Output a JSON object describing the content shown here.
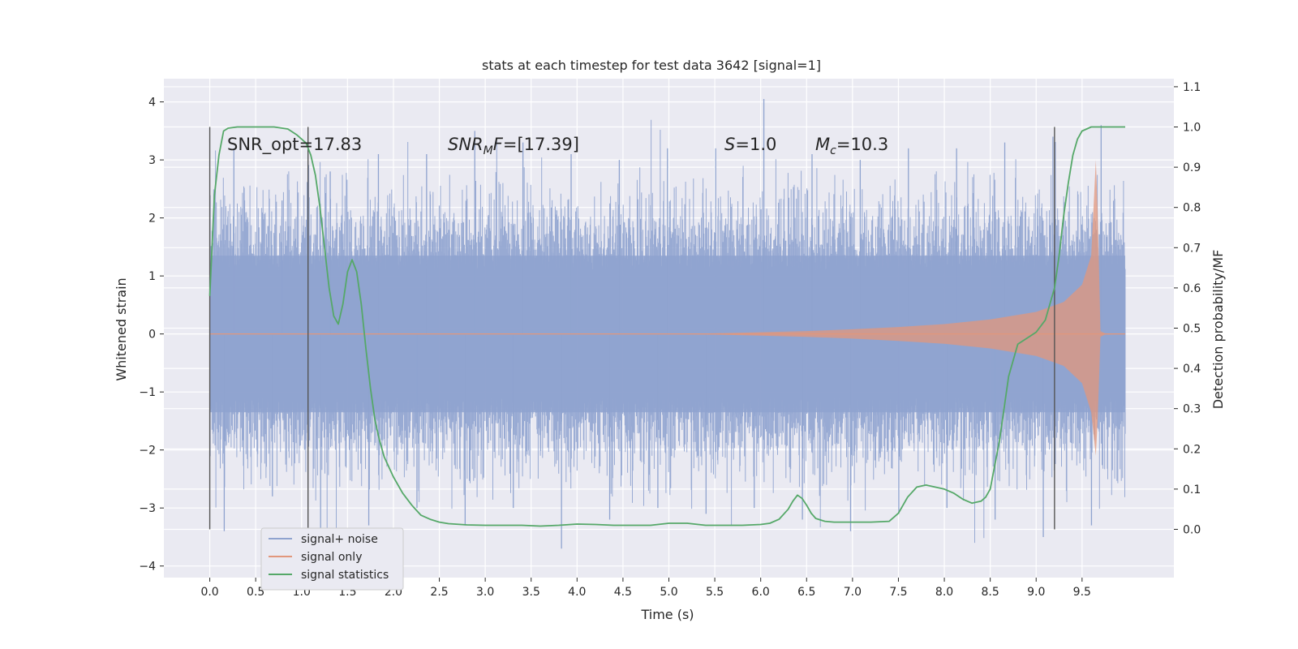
{
  "chart_data": {
    "type": "line",
    "title": "stats at each timestep for test data 3642 [signal=1]",
    "xlabel": "Time (s)",
    "ylabel": "Whitened strain",
    "ylabel_right": "Detection probability/MF",
    "xlim": [
      -0.5,
      10.5
    ],
    "ylim": [
      -4.2,
      4.4
    ],
    "ylim_right": [
      -0.12,
      1.12
    ],
    "x_ticks": [
      "0.0",
      "0.5",
      "1.0",
      "1.5",
      "2.0",
      "2.5",
      "3.0",
      "3.5",
      "4.0",
      "4.5",
      "5.0",
      "5.5",
      "6.0",
      "6.5",
      "7.0",
      "7.5",
      "8.0",
      "8.5",
      "9.0",
      "9.5"
    ],
    "y_ticks": [
      "4",
      "3",
      "2",
      "1",
      "0",
      "−1",
      "−2",
      "−3",
      "−4"
    ],
    "y_ticks_right": [
      "1.1",
      "1.0",
      "0.9",
      "0.8",
      "0.7",
      "0.6",
      "0.5",
      "0.4",
      "0.3",
      "0.2",
      "0.1",
      "0.0"
    ],
    "grid": true,
    "legend_position": "bottom-left",
    "annotations": {
      "snr_opt": "SNR_opt=17.83",
      "snr_mf": "[17.39]",
      "s": "1.0",
      "mc": "10.3"
    },
    "vertical_lines_x": [
      0.0,
      1.07,
      9.2
    ],
    "series": [
      {
        "name": "signal+ noise",
        "color": "#8fa3cf",
        "x_range": [
          0.0,
          9.97
        ],
        "envelope_typical": 1.35,
        "peak_values": [
          3.2,
          2.3,
          2.8,
          3.1,
          3.1,
          3.5,
          3.3,
          3.1,
          3.0,
          3.2,
          3.2,
          4.05,
          3.1,
          3.0,
          3.2,
          3.2,
          3.3,
          3.4,
          3.6
        ],
        "trough_values": [
          -3.4,
          -2.8,
          -3.5,
          -3.3,
          -3.0,
          -3.3,
          -3.0,
          -3.7,
          -3.2,
          -3.0,
          -3.1,
          -3.0,
          -3.2,
          -3.4,
          -3.1,
          -3.0,
          -3.2,
          -3.5,
          -3.3
        ]
      },
      {
        "name": "signal only",
        "color": "#e1977c",
        "x": [
          0.0,
          5.0,
          5.5,
          6.0,
          6.5,
          7.0,
          7.5,
          8.0,
          8.5,
          9.0,
          9.3,
          9.5,
          9.6,
          9.65,
          9.67,
          9.7,
          9.75,
          9.97
        ],
        "amplitude": [
          0.0,
          0.0,
          0.01,
          0.03,
          0.05,
          0.08,
          0.12,
          0.17,
          0.25,
          0.38,
          0.55,
          0.85,
          1.35,
          3.0,
          2.1,
          0.05,
          0.01,
          0.0
        ]
      },
      {
        "name": "signal statistics",
        "color": "#55a868",
        "axis": "right",
        "x": [
          0.0,
          0.05,
          0.1,
          0.15,
          0.2,
          0.3,
          0.5,
          0.7,
          0.85,
          0.95,
          1.05,
          1.1,
          1.15,
          1.2,
          1.25,
          1.3,
          1.35,
          1.4,
          1.45,
          1.5,
          1.55,
          1.6,
          1.65,
          1.7,
          1.75,
          1.8,
          1.85,
          1.9,
          2.0,
          2.1,
          2.2,
          2.3,
          2.4,
          2.5,
          2.6,
          2.8,
          3.0,
          3.2,
          3.4,
          3.6,
          3.8,
          4.0,
          4.2,
          4.4,
          4.6,
          4.8,
          5.0,
          5.2,
          5.4,
          5.6,
          5.8,
          6.0,
          6.1,
          6.2,
          6.3,
          6.35,
          6.4,
          6.45,
          6.5,
          6.55,
          6.6,
          6.7,
          6.8,
          7.0,
          7.2,
          7.4,
          7.5,
          7.6,
          7.7,
          7.8,
          7.9,
          8.0,
          8.1,
          8.2,
          8.3,
          8.4,
          8.45,
          8.5,
          8.6,
          8.7,
          8.8,
          9.0,
          9.1,
          9.2,
          9.25,
          9.3,
          9.35,
          9.4,
          9.45,
          9.5,
          9.6,
          9.7,
          9.8,
          9.9,
          9.97
        ],
        "y": [
          0.58,
          0.83,
          0.93,
          0.99,
          0.997,
          1.0,
          1.0,
          1.0,
          0.995,
          0.98,
          0.96,
          0.93,
          0.88,
          0.8,
          0.7,
          0.6,
          0.53,
          0.51,
          0.56,
          0.64,
          0.67,
          0.64,
          0.56,
          0.45,
          0.35,
          0.27,
          0.22,
          0.18,
          0.13,
          0.09,
          0.06,
          0.035,
          0.025,
          0.018,
          0.014,
          0.011,
          0.01,
          0.01,
          0.01,
          0.008,
          0.01,
          0.013,
          0.012,
          0.01,
          0.01,
          0.01,
          0.015,
          0.015,
          0.01,
          0.01,
          0.01,
          0.012,
          0.015,
          0.025,
          0.05,
          0.07,
          0.085,
          0.077,
          0.06,
          0.04,
          0.027,
          0.02,
          0.018,
          0.018,
          0.018,
          0.02,
          0.04,
          0.08,
          0.105,
          0.11,
          0.105,
          0.1,
          0.09,
          0.075,
          0.065,
          0.07,
          0.08,
          0.1,
          0.22,
          0.38,
          0.46,
          0.49,
          0.52,
          0.6,
          0.68,
          0.78,
          0.86,
          0.93,
          0.97,
          0.99,
          1.0,
          1.0,
          1.0,
          1.0,
          1.0
        ]
      }
    ]
  }
}
